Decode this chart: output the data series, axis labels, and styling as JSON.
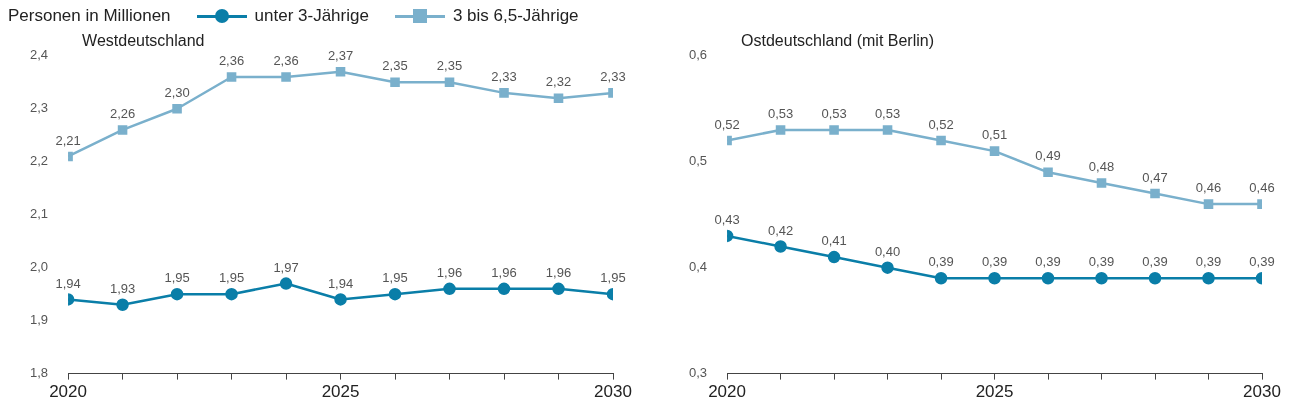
{
  "chart_data": [
    {
      "type": "line",
      "title": "Westdeutschland",
      "ylabel": "Personen in Millionen",
      "legend": "top",
      "line_style": "solid",
      "grid": false,
      "x": [
        2020,
        2021,
        2022,
        2023,
        2024,
        2025,
        2026,
        2027,
        2028,
        2029,
        2030
      ],
      "xlim": [
        2020,
        2030
      ],
      "xticks": [
        2020,
        {
          "value": 2021,
          "label": null
        },
        {
          "value": 2022,
          "label": null
        },
        {
          "value": 2023,
          "label": null
        },
        {
          "value": 2024,
          "label": null
        },
        2025,
        {
          "value": 2026,
          "label": null
        },
        {
          "value": 2027,
          "label": null
        },
        {
          "value": 2028,
          "label": null
        },
        {
          "value": 2029,
          "label": null
        },
        2030
      ],
      "ylim": [
        1.8,
        2.4
      ],
      "yticks": [
        {
          "value": 1.8,
          "label": "1,8"
        },
        {
          "value": 1.9,
          "label": "1,9"
        },
        {
          "value": 2.0,
          "label": "2,0"
        },
        {
          "value": 2.1,
          "label": "2,1"
        },
        {
          "value": 2.2,
          "label": "2,2"
        },
        {
          "value": 2.3,
          "label": "2,3"
        },
        {
          "value": 2.4,
          "label": "2,4"
        }
      ],
      "series": [
        {
          "name": "unter 3-Jährige",
          "color": "#0a7ea8",
          "marker": "circle",
          "values": [
            1.94,
            1.93,
            1.95,
            1.95,
            1.97,
            1.94,
            1.95,
            1.96,
            1.96,
            1.96,
            1.95
          ],
          "value_labels": [
            "1,94",
            "1,93",
            "1,95",
            "1,95",
            "1,97",
            "1,94",
            "1,95",
            "1,96",
            "1,96",
            "1,96",
            "1,95"
          ]
        },
        {
          "name": "3 bis 6,5-Jährige",
          "color": "#7ab0cc",
          "marker": "square",
          "values": [
            2.21,
            2.26,
            2.3,
            2.36,
            2.36,
            2.37,
            2.35,
            2.35,
            2.33,
            2.32,
            2.33
          ],
          "value_labels": [
            "2,21",
            "2,26",
            "2,30",
            "2,36",
            "2,36",
            "2,37",
            "2,35",
            "2,35",
            "2,33",
            "2,32",
            "2,33"
          ]
        }
      ]
    },
    {
      "type": "line",
      "title": "Ostdeutschland (mit Berlin)",
      "line_style": "solid",
      "grid": false,
      "x": [
        2020,
        2021,
        2022,
        2023,
        2024,
        2025,
        2026,
        2027,
        2028,
        2029,
        2030
      ],
      "xlim": [
        2020,
        2030
      ],
      "xticks": [
        2020,
        {
          "value": 2021,
          "label": null
        },
        {
          "value": 2022,
          "label": null
        },
        {
          "value": 2023,
          "label": null
        },
        {
          "value": 2024,
          "label": null
        },
        2025,
        {
          "value": 2026,
          "label": null
        },
        {
          "value": 2027,
          "label": null
        },
        {
          "value": 2028,
          "label": null
        },
        {
          "value": 2029,
          "label": null
        },
        2030
      ],
      "ylim": [
        0.3,
        0.6
      ],
      "yticks": [
        {
          "value": 0.3,
          "label": "0,3"
        },
        {
          "value": 0.4,
          "label": "0,4"
        },
        {
          "value": 0.5,
          "label": "0,5"
        },
        {
          "value": 0.6,
          "label": "0,6"
        }
      ],
      "series": [
        {
          "color": "#0a7ea8",
          "marker": "circle",
          "values": [
            0.43,
            0.42,
            0.41,
            0.4,
            0.39,
            0.39,
            0.39,
            0.39,
            0.39,
            0.39,
            0.39
          ],
          "value_labels": [
            "0,43",
            "0,42",
            "0,41",
            "0,40",
            "0,39",
            "0,39",
            "0,39",
            "0,39",
            "0,39",
            "0,39",
            "0,39"
          ]
        },
        {
          "color": "#7ab0cc",
          "marker": "square",
          "values": [
            0.52,
            0.53,
            0.53,
            0.53,
            0.52,
            0.51,
            0.49,
            0.48,
            0.47,
            0.46,
            0.46
          ],
          "value_labels": [
            "0,52",
            "0,53",
            "0,53",
            "0,53",
            "0,52",
            "0,51",
            "0,49",
            "0,48",
            "0,47",
            "0,46",
            "0,46"
          ]
        }
      ]
    }
  ]
}
